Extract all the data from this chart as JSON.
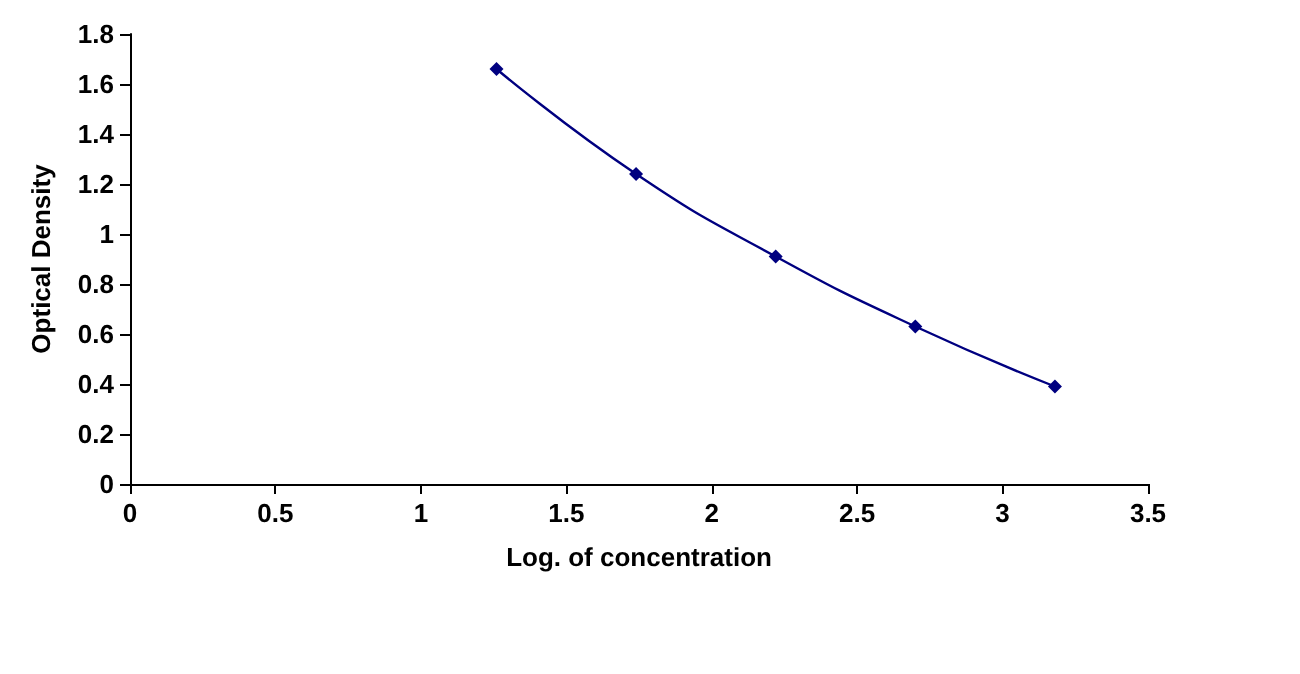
{
  "chart_data": {
    "type": "line",
    "xlabel": "Log. of concentration",
    "ylabel": "Optical Density",
    "x": [
      1.26,
      1.74,
      2.22,
      2.7,
      3.18
    ],
    "series": [
      {
        "color": "#000080",
        "values": [
          1.66,
          1.24,
          0.91,
          0.63,
          0.39
        ]
      }
    ],
    "xlim": [
      0,
      3.5
    ],
    "xticks": [
      0,
      0.5,
      1,
      1.5,
      2,
      2.5,
      3,
      3.5
    ],
    "ylim": [
      0,
      1.8
    ],
    "yticks": [
      0,
      0.2,
      0.4,
      0.6,
      0.8,
      1,
      1.2,
      1.4,
      1.6,
      1.8
    ],
    "marker": "diamond",
    "line_style": "solid"
  }
}
